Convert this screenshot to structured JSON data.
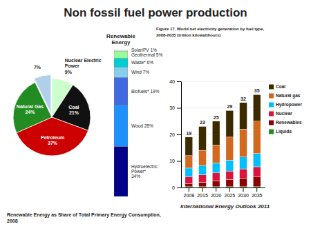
{
  "chart_data": [
    {
      "type": "pie",
      "title": "Non fossil fuel power production",
      "subtitle": "Renewable Energy as Share of Total Primary Energy Consumption,\n2008",
      "categories": [
        "Nuclear Electric\nPower",
        "Coal",
        "Petroleum",
        "Natural Gas",
        null
      ],
      "values": [
        9,
        21,
        37,
        24,
        7
      ],
      "value_labels": [
        "9%",
        "21%",
        "37%",
        "24%",
        "7%"
      ],
      "colors": [
        "#ccffcc",
        "#111111",
        "#cc0000",
        "#228B22",
        "#b0cfe8"
      ],
      "data_labels": true
    },
    {
      "type": "bar",
      "title": "Renewable\nEnergy",
      "stacked": true,
      "categories": [
        null
      ],
      "series": [
        {
          "name": "Solar/PV 1%",
          "color": "#f0f0f0",
          "values": [
            1
          ]
        },
        {
          "name": "Geothermal 5%",
          "color": "#98FB98",
          "values": [
            5
          ]
        },
        {
          "name": "Waste* 6%",
          "color": "#00CED1",
          "values": [
            6
          ]
        },
        {
          "name": "Wind 7%",
          "color": "#87CEEB",
          "values": [
            7
          ]
        },
        {
          "name": "Biofuels* 19%",
          "color": "#4169E1",
          "values": [
            19
          ]
        },
        {
          "name": "Wood 28%",
          "color": "#1E90FF",
          "values": [
            28
          ]
        },
        {
          "name": "Hydroelectric\nPower*\n34%",
          "color": "#00008B",
          "values": [
            34
          ]
        }
      ],
      "ylim": [
        0,
        100
      ],
      "legend": "right",
      "tick_labels": false
    },
    {
      "type": "bar",
      "title": "Figure 17. World net electricity generation by fuel type,\n2008-2035 (trillion kilowatthours)",
      "stacked": true,
      "categories": [
        "2008",
        "2015",
        "2020",
        "2025",
        "2030",
        "2035"
      ],
      "series": [
        {
          "name": "Liquids",
          "color": "#228B22",
          "values": [
            0.3,
            0.3,
            0.3,
            0.3,
            0.3,
            0.3
          ]
        },
        {
          "name": "Renewables",
          "color": "#8B0000",
          "values": [
            1.2,
            1.7,
            2.2,
            2.7,
            3.2,
            3.7
          ]
        },
        {
          "name": "Nuclear",
          "color": "#DC143C",
          "values": [
            2.6,
            2.8,
            3.0,
            3.2,
            3.5,
            3.8
          ]
        },
        {
          "name": "Hydropower",
          "color": "#00BFFF",
          "values": [
            3.2,
            3.5,
            3.8,
            4.1,
            4.5,
            5.0
          ]
        },
        {
          "name": "Natural gas",
          "color": "#D2691E",
          "values": [
            4.7,
            5.7,
            6.7,
            8.7,
            10.5,
            12.2
          ]
        },
        {
          "name": "Coal",
          "color": "#3d2b00",
          "values": [
            7.0,
            9.0,
            9.0,
            10.0,
            10.0,
            10.0
          ]
        }
      ],
      "totals": [
        19,
        23,
        25,
        29,
        32,
        35
      ],
      "ylim": [
        0,
        40
      ],
      "yticks": [
        0,
        10,
        20,
        30,
        40
      ],
      "grid": true,
      "legend": "right",
      "annotations": [
        "International Energy Outlook 2011"
      ]
    }
  ]
}
